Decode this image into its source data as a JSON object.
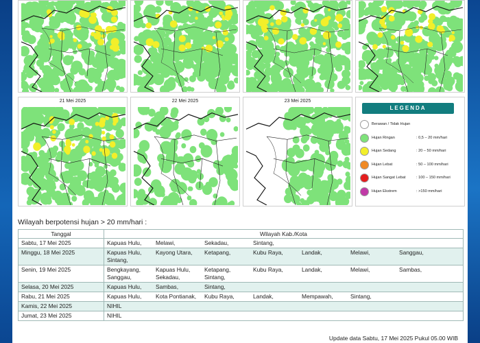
{
  "maps": [
    {
      "date": ""
    },
    {
      "date": ""
    },
    {
      "date": ""
    },
    {
      "date": ""
    },
    {
      "date": "21 Mei 2025"
    },
    {
      "date": "22 Mei 2025"
    },
    {
      "date": "23 Mei 2025"
    }
  ],
  "legend": {
    "title": "LEGENDA",
    "items": [
      {
        "label": "Berawan / Tidak Hujan",
        "range": "",
        "color": "#ffffff"
      },
      {
        "label": "Hujan Ringan",
        "range": ": 0,5 – 20 mm/hari",
        "color": "#7ee27a"
      },
      {
        "label": "Hujan Sedang",
        "range": ": 20 – 50 mm/hari",
        "color": "#f2ef2a"
      },
      {
        "label": "Hujan Lebat",
        "range": ": 50 – 100 mm/hari",
        "color": "#f08a25"
      },
      {
        "label": "Hujan Sangat Lebat",
        "range": ": 100 – 150 mm/hari",
        "color": "#e41d1d"
      },
      {
        "label": "Hujan Ekstrem",
        "range": ": >150 mm/hari",
        "color": "#c13aa7"
      }
    ]
  },
  "section_title": "Wilayah berpotensi hujan > 20 mm/hari :",
  "table": {
    "headers": [
      "Tanggal",
      "Wilayah Kab./Kota"
    ],
    "rows": [
      {
        "date": "Sabtu, 17 Mei 2025",
        "items": [
          "Kapuas Hulu,",
          "Melawi,",
          "Sekadau,",
          "Sintang,"
        ]
      },
      {
        "date": "Minggu, 18 Mei 2025",
        "items": [
          "Kapuas Hulu,",
          "Kayong Utara,",
          "Ketapang,",
          "Kubu Raya,",
          "Landak,",
          "Melawi,",
          "Sanggau,",
          "Sintang,"
        ]
      },
      {
        "date": "Senin, 19 Mei 2025",
        "items": [
          "Bengkayang,",
          "Kapuas Hulu,",
          "Ketapang,",
          "Kubu Raya,",
          "Landak,",
          "Melawi,",
          "Sambas,",
          "Sanggau,",
          "Sekadau,",
          "Sintang,"
        ]
      },
      {
        "date": "Selasa, 20 Mei 2025",
        "items": [
          "Kapuas Hulu,",
          "Sambas,",
          "Sintang,"
        ]
      },
      {
        "date": "Rabu, 21 Mei 2025",
        "items": [
          "Kapuas Hulu,",
          "Kota Pontianak,",
          "Kubu Raya,",
          "Landak,",
          "Mempawah,",
          "Sintang,"
        ]
      },
      {
        "date": "Kamis, 22 Mei 2025",
        "items": [
          "NIHIL"
        ]
      },
      {
        "date": "Jumat, 23 Mei 2025",
        "items": [
          "NIHIL"
        ]
      }
    ]
  },
  "update_text": "Update data Sabtu, 17 Mei 2025 Pukul 05.00 WIB"
}
